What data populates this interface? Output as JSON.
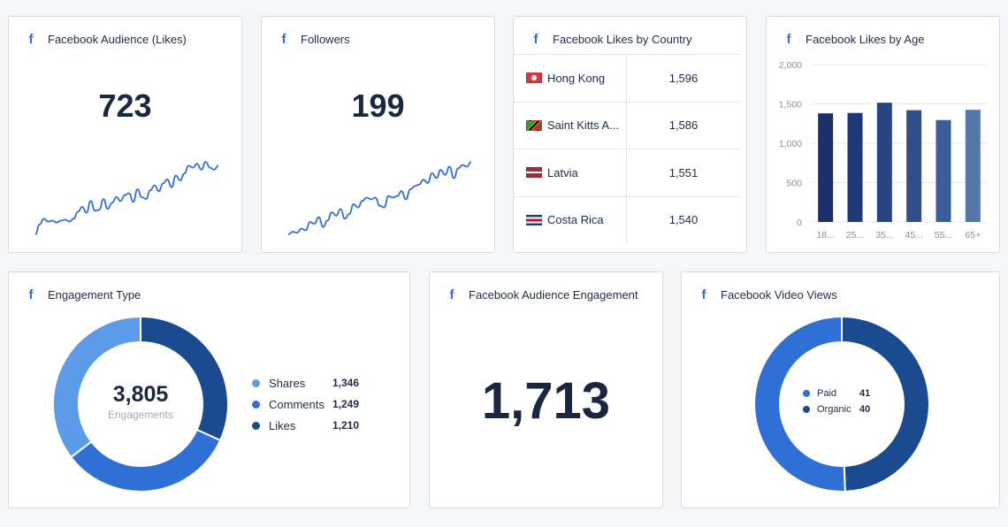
{
  "colors": {
    "facebook_blue": "#2f6fd6",
    "dark_navy": "#1a2740",
    "shares": "#5b9be8",
    "comments": "#2f6fd6",
    "likes": "#1a4a8f",
    "paid": "#2f6fd6",
    "organic": "#1a4a8f"
  },
  "icons": {
    "card_icon": "facebook-icon",
    "icon_glyph": "f"
  },
  "audience": {
    "title": "Facebook Audience (Likes)",
    "value": "723"
  },
  "followers": {
    "title": "Followers",
    "value": "199"
  },
  "countries": {
    "title": "Facebook Likes by Country",
    "rows": [
      {
        "name": "Hong Kong",
        "value": "1,596",
        "flag": "hong-kong-flag"
      },
      {
        "name": "Saint Kitts A...",
        "value": "1,586",
        "flag": "saint-kitts-flag"
      },
      {
        "name": "Latvia",
        "value": "1,551",
        "flag": "latvia-flag"
      },
      {
        "name": "Costa Rica",
        "value": "1,540",
        "flag": "costa-rica-flag"
      }
    ]
  },
  "age": {
    "title": "Facebook Likes by Age"
  },
  "engagement_type": {
    "title": "Engagement Type",
    "center_value": "3,805",
    "center_label": "Engagements",
    "legend": [
      {
        "label": "Shares",
        "value": "1,346",
        "color": "#5b9be8"
      },
      {
        "label": "Comments",
        "value": "1,249",
        "color": "#2f6fd6"
      },
      {
        "label": "Likes",
        "value": "1,210",
        "color": "#1a4a8f"
      }
    ]
  },
  "audience_engagement": {
    "title": "Facebook Audience Engagement",
    "value": "1,713"
  },
  "video_views": {
    "title": "Facebook Video Views",
    "legend": [
      {
        "label": "Paid",
        "value": "41",
        "color": "#2f6fd6"
      },
      {
        "label": "Organic",
        "value": "40",
        "color": "#1a4a8f"
      }
    ]
  },
  "chart_data": [
    {
      "type": "bar",
      "title": "Facebook Likes by Age",
      "categories": [
        "18...",
        "25...",
        "35...",
        "45...",
        "55...",
        "65+"
      ],
      "values": [
        1380,
        1385,
        1515,
        1420,
        1295,
        1425
      ],
      "ylim": [
        0,
        2000
      ],
      "yticks": [
        "0",
        "500",
        "1,000",
        "1,500",
        "2,000"
      ],
      "grid": true,
      "colors": [
        "#1a2f6b",
        "#1f3878",
        "#26447f",
        "#2e4f8c",
        "#3a5e9a",
        "#5676a9"
      ]
    },
    {
      "type": "pie",
      "title": "Engagement Type",
      "categories": [
        "Shares",
        "Comments",
        "Likes"
      ],
      "values": [
        1346,
        1249,
        1210
      ]
    },
    {
      "type": "pie",
      "title": "Facebook Video Views",
      "categories": [
        "Paid",
        "Organic"
      ],
      "values": [
        41,
        40
      ]
    },
    {
      "type": "line",
      "title": "Facebook Audience (Likes)",
      "values": [
        2,
        12,
        18,
        15,
        16,
        14,
        16,
        17,
        15,
        18,
        25,
        30,
        24,
        36,
        26,
        27,
        38,
        28,
        34,
        40,
        36,
        42,
        44,
        35,
        48,
        40,
        38,
        47,
        52,
        46,
        54,
        58,
        50,
        62,
        57,
        64,
        72,
        70,
        74,
        68,
        76,
        70,
        68,
        72
      ]
    },
    {
      "type": "line",
      "title": "Followers",
      "values": [
        3,
        6,
        5,
        10,
        8,
        18,
        16,
        24,
        12,
        20,
        30,
        26,
        34,
        22,
        28,
        40,
        36,
        44,
        48,
        46,
        48,
        38,
        36,
        50,
        48,
        50,
        56,
        46,
        58,
        62,
        64,
        70,
        66,
        78,
        72,
        82,
        76,
        86,
        72,
        84,
        88,
        86,
        92
      ]
    }
  ]
}
